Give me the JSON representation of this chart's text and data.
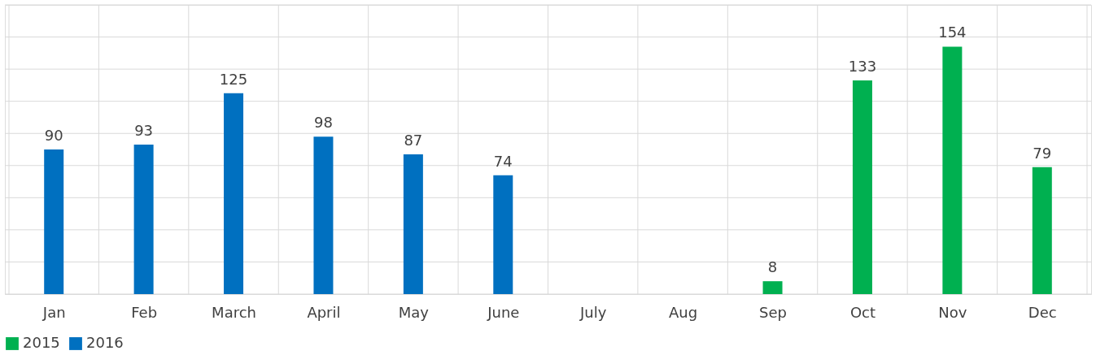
{
  "chart_data": {
    "type": "bar",
    "categories": [
      "Jan",
      "Feb",
      "March",
      "April",
      "May",
      "June",
      "July",
      "Aug",
      "Sep",
      "Oct",
      "Nov",
      "Dec"
    ],
    "series": [
      {
        "name": "2015",
        "color": "#00b050",
        "values": [
          null,
          null,
          null,
          null,
          null,
          null,
          null,
          null,
          8,
          133,
          154,
          79
        ]
      },
      {
        "name": "2016",
        "color": "#0070c0",
        "values": [
          90,
          93,
          125,
          98,
          87,
          74,
          null,
          null,
          null,
          null,
          null,
          null
        ]
      }
    ],
    "ylim": [
      0,
      180
    ],
    "yticks": [
      {
        "value": 0,
        "label": null
      },
      {
        "value": 20,
        "label": null
      },
      {
        "value": 40,
        "label": null
      },
      {
        "value": 60,
        "label": null
      },
      {
        "value": 80,
        "label": null
      },
      {
        "value": 100,
        "label": null
      },
      {
        "value": 120,
        "label": null
      },
      {
        "value": 140,
        "label": null
      },
      {
        "value": 160,
        "label": null
      },
      {
        "value": 180,
        "label": null
      }
    ],
    "tick_labels": "x",
    "grid": true,
    "legend": "bottom",
    "data_labels": true
  }
}
